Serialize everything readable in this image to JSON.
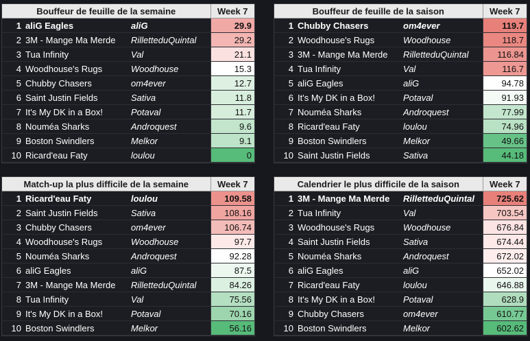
{
  "tables": [
    {
      "title": "Bouffeur de feuille de la semaine",
      "week": "Week 7",
      "rows": [
        {
          "rank": "1",
          "team": "aliG Eagles",
          "owner": "aliG",
          "value": "29.9",
          "color": "#f1a9a6"
        },
        {
          "rank": "2",
          "team": "3M - Mange Ma Merde",
          "owner": "RilletteduQuintal",
          "value": "29.2",
          "color": "#f3b6b3"
        },
        {
          "rank": "3",
          "team": "Tua Infinity",
          "owner": "Val",
          "value": "21.1",
          "color": "#fbe2e1"
        },
        {
          "rank": "4",
          "team": "Woodhouse's Rugs",
          "owner": "Woodhouse",
          "value": "15.3",
          "color": "#ffffff"
        },
        {
          "rank": "5",
          "team": "Chubby Chasers",
          "owner": "om4ever",
          "value": "12.7",
          "color": "#ddf0e2"
        },
        {
          "rank": "6",
          "team": "Saint Justin Fields",
          "owner": "Sativa",
          "value": "11.8",
          "color": "#d8eedd"
        },
        {
          "rank": "7",
          "team": "It's My DK in a Box!",
          "owner": "Potaval",
          "value": "11.7",
          "color": "#d7edd c"
        },
        {
          "rank": "8",
          "team": "Nouméa Sharks",
          "owner": "Androquest",
          "value": "9.6",
          "color": "#c2e5cc"
        },
        {
          "rank": "9",
          "team": "Boston Swindlers",
          "owner": "Melkor",
          "value": "9.1",
          "color": "#bde3c8"
        },
        {
          "rank": "10",
          "team": "Ricard'eau Faty",
          "owner": "loulou",
          "value": "0",
          "color": "#57bb7a"
        }
      ]
    },
    {
      "title": "Bouffeur de feuille de la saison",
      "week": "Week 7",
      "rows": [
        {
          "rank": "1",
          "team": "Chubby Chasers",
          "owner": "om4ever",
          "value": "119.7",
          "color": "#e8807a"
        },
        {
          "rank": "2",
          "team": "Woodhouse's Rugs",
          "owner": "Woodhouse",
          "value": "118.7",
          "color": "#ea8781"
        },
        {
          "rank": "3",
          "team": "3M - Mange Ma Merde",
          "owner": "RilletteduQuintal",
          "value": "116.84",
          "color": "#ec9590"
        },
        {
          "rank": "4",
          "team": "Tua Infinity",
          "owner": "Val",
          "value": "116.7",
          "color": "#ed9893"
        },
        {
          "rank": "5",
          "team": "aliG Eagles",
          "owner": "aliG",
          "value": "94.78",
          "color": "#ffffff"
        },
        {
          "rank": "6",
          "team": "It's My DK in a Box!",
          "owner": "Potaval",
          "value": "91.93",
          "color": "#f4faf6"
        },
        {
          "rank": "7",
          "team": "Nouméa Sharks",
          "owner": "Androquest",
          "value": "77.99",
          "color": "#c4e6ce"
        },
        {
          "rank": "8",
          "team": "Ricard'eau Faty",
          "owner": "loulou",
          "value": "74.96",
          "color": "#b9e1c4"
        },
        {
          "rank": "9",
          "team": "Boston Swindlers",
          "owner": "Melkor",
          "value": "49.66",
          "color": "#67c287"
        },
        {
          "rank": "10",
          "team": "Saint Justin Fields",
          "owner": "Sativa",
          "value": "44.18",
          "color": "#57bb7a"
        }
      ]
    },
    {
      "title": "Match-up la plus difficile de la semaine",
      "week": "Week 7",
      "rows": [
        {
          "rank": "1",
          "team": "Ricard'eau Faty",
          "owner": "loulou",
          "value": "109.58",
          "color": "#ec928c"
        },
        {
          "rank": "2",
          "team": "Saint Justin Fields",
          "owner": "Sativa",
          "value": "108.16",
          "color": "#f0a5a1"
        },
        {
          "rank": "3",
          "team": "Chubby Chasers",
          "owner": "om4ever",
          "value": "106.74",
          "color": "#f4bcb9"
        },
        {
          "rank": "4",
          "team": "Woodhouse's Rugs",
          "owner": "Woodhouse",
          "value": "97.7",
          "color": "#fde9e8"
        },
        {
          "rank": "5",
          "team": "Nouméa Sharks",
          "owner": "Androquest",
          "value": "92.28",
          "color": "#ffffff"
        },
        {
          "rank": "6",
          "team": "aliG Eagles",
          "owner": "aliG",
          "value": "87.5",
          "color": "#ecf7ef"
        },
        {
          "rank": "7",
          "team": "3M - Mange Ma Merde",
          "owner": "RilletteduQuintal",
          "value": "84.26",
          "color": "#dcf0e2"
        },
        {
          "rank": "8",
          "team": "Tua Infinity",
          "owner": "Val",
          "value": "75.56",
          "color": "#b4dfc1"
        },
        {
          "rank": "9",
          "team": "It's My DK in a Box!",
          "owner": "Potaval",
          "value": "70.16",
          "color": "#9dd5ae"
        },
        {
          "rank": "10",
          "team": "Boston Swindlers",
          "owner": "Melkor",
          "value": "56.16",
          "color": "#57bb7a"
        }
      ]
    },
    {
      "title": "Calendrier le plus difficile de la saison",
      "week": "Week 7",
      "rows": [
        {
          "rank": "1",
          "team": "3M - Mange Ma Merde",
          "owner": "RilletteduQuintal",
          "value": "725.62",
          "color": "#e8807a"
        },
        {
          "rank": "2",
          "team": "Tua Infinity",
          "owner": "Val",
          "value": "703.54",
          "color": "#f6c6c3"
        },
        {
          "rank": "3",
          "team": "Woodhouse's Rugs",
          "owner": "Woodhouse",
          "value": "676.84",
          "color": "#fbe4e3"
        },
        {
          "rank": "4",
          "team": "Saint Justin Fields",
          "owner": "Sativa",
          "value": "674.44",
          "color": "#fde9e8"
        },
        {
          "rank": "5",
          "team": "Nouméa Sharks",
          "owner": "Androquest",
          "value": "672.02",
          "color": "#fdeeed"
        },
        {
          "rank": "6",
          "team": "aliG Eagles",
          "owner": "aliG",
          "value": "652.02",
          "color": "#ffffff"
        },
        {
          "rank": "7",
          "team": "Ricard'eau Faty",
          "owner": "loulou",
          "value": "646.88",
          "color": "#e9f6ed"
        },
        {
          "rank": "8",
          "team": "It's My DK in a Box!",
          "owner": "Potaval",
          "value": "628.9",
          "color": "#b0ddbe"
        },
        {
          "rank": "9",
          "team": "Chubby Chasers",
          "owner": "om4ever",
          "value": "610.77",
          "color": "#77c994"
        },
        {
          "rank": "10",
          "team": "Boston Swindlers",
          "owner": "Melkor",
          "value": "602.62",
          "color": "#57bb7a"
        }
      ]
    }
  ]
}
